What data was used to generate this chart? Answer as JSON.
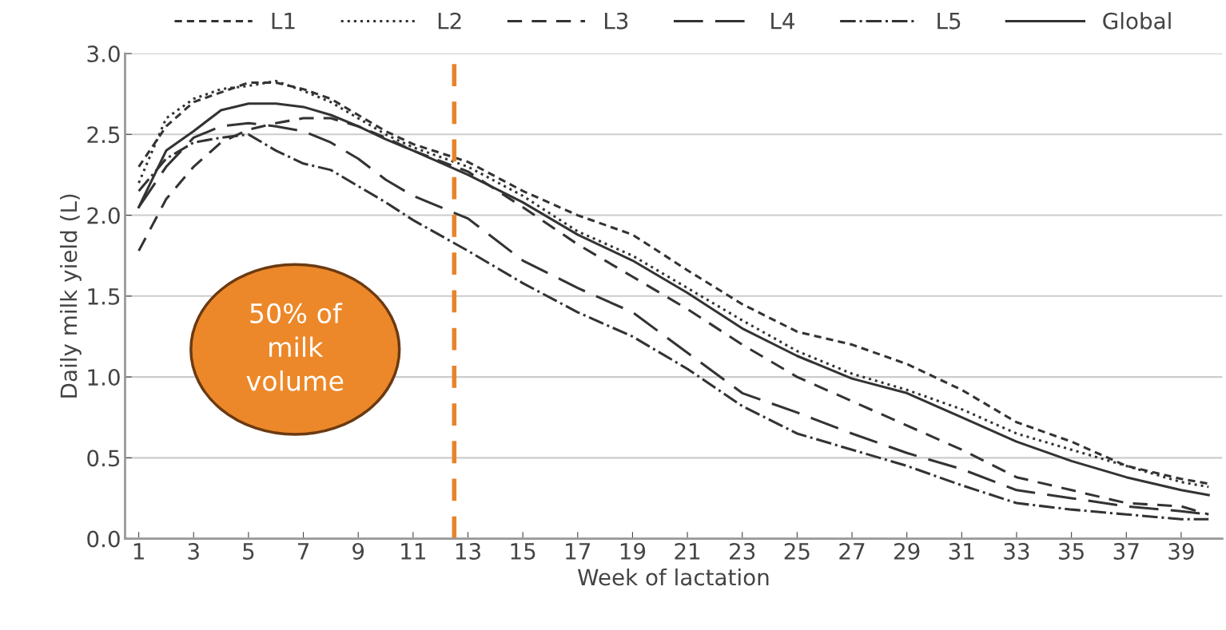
{
  "chart_data": {
    "type": "line",
    "xlabel": "Week of lactation",
    "ylabel": "Daily milk yield (L)",
    "x": [
      1,
      2,
      3,
      4,
      5,
      6,
      7,
      8,
      9,
      10,
      11,
      13,
      15,
      17,
      19,
      21,
      23,
      25,
      27,
      29,
      31,
      33,
      35,
      37,
      39,
      40
    ],
    "series": [
      {
        "name": "L1",
        "color": "#333333",
        "line_style": "dashed",
        "values": [
          2.3,
          2.55,
          2.7,
          2.76,
          2.82,
          2.82,
          2.78,
          2.72,
          2.62,
          2.52,
          2.44,
          2.33,
          2.15,
          2.0,
          1.88,
          1.66,
          1.45,
          1.28,
          1.2,
          1.08,
          0.92,
          0.72,
          0.6,
          0.45,
          0.37,
          0.34
        ]
      },
      {
        "name": "L2",
        "color": "#333333",
        "line_style": "dotted",
        "values": [
          2.2,
          2.6,
          2.72,
          2.78,
          2.8,
          2.83,
          2.77,
          2.7,
          2.6,
          2.5,
          2.42,
          2.3,
          2.12,
          1.9,
          1.75,
          1.55,
          1.35,
          1.16,
          1.02,
          0.92,
          0.8,
          0.65,
          0.55,
          0.45,
          0.35,
          0.32
        ]
      },
      {
        "name": "L3",
        "color": "#333333",
        "line_style": "dashed",
        "values": [
          1.78,
          2.1,
          2.3,
          2.45,
          2.53,
          2.57,
          2.6,
          2.6,
          2.55,
          2.48,
          2.4,
          2.27,
          2.05,
          1.82,
          1.62,
          1.42,
          1.2,
          1.0,
          0.85,
          0.7,
          0.55,
          0.38,
          0.3,
          0.22,
          0.2,
          0.15
        ]
      },
      {
        "name": "L4",
        "color": "#333333",
        "line_style": "dashed",
        "values": [
          2.05,
          2.3,
          2.48,
          2.55,
          2.57,
          2.55,
          2.52,
          2.45,
          2.35,
          2.22,
          2.12,
          1.98,
          1.72,
          1.55,
          1.4,
          1.15,
          0.9,
          0.78,
          0.65,
          0.53,
          0.43,
          0.3,
          0.25,
          0.2,
          0.17,
          0.15
        ]
      },
      {
        "name": "L5",
        "color": "#333333",
        "line_style": "dashdot",
        "values": [
          2.15,
          2.35,
          2.45,
          2.48,
          2.5,
          2.4,
          2.32,
          2.28,
          2.18,
          2.08,
          1.97,
          1.78,
          1.58,
          1.4,
          1.25,
          1.05,
          0.82,
          0.65,
          0.55,
          0.45,
          0.33,
          0.22,
          0.18,
          0.15,
          0.12,
          0.12
        ]
      },
      {
        "name": "Global",
        "color": "#333333",
        "line_style": "solid",
        "values": [
          2.05,
          2.4,
          2.52,
          2.65,
          2.69,
          2.69,
          2.67,
          2.62,
          2.55,
          2.47,
          2.4,
          2.25,
          2.08,
          1.88,
          1.72,
          1.52,
          1.3,
          1.13,
          0.99,
          0.9,
          0.75,
          0.6,
          0.48,
          0.38,
          0.3,
          0.27
        ]
      }
    ],
    "xlim": [
      0.5,
      40.5
    ],
    "xticks": [
      1,
      3,
      5,
      7,
      9,
      11,
      13,
      15,
      17,
      19,
      21,
      23,
      25,
      27,
      29,
      31,
      33,
      35,
      37,
      39
    ],
    "ylim": [
      0,
      3
    ],
    "yticks": [
      {
        "value": 0,
        "label": "0.0"
      },
      {
        "value": 0.5,
        "label": "0.5"
      },
      {
        "value": 1,
        "label": "1.0"
      },
      {
        "value": 1.5,
        "label": "1.5"
      },
      {
        "value": 2,
        "label": "2.0"
      },
      {
        "value": 2.5,
        "label": "2.5"
      },
      {
        "value": 3,
        "label": "3.0"
      }
    ],
    "grid": "y",
    "legend": "top",
    "marker": "none",
    "ref_lines": [
      {
        "axis": "x",
        "value": 12.5,
        "color": "#e8832a",
        "line_style": "dashed"
      }
    ],
    "annotations": [
      "50% of\nmilk\nvolume"
    ]
  }
}
